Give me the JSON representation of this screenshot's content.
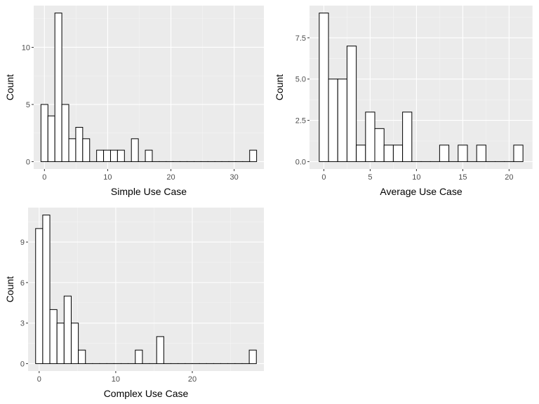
{
  "chart_data": [
    {
      "type": "bar",
      "subtype": "histogram",
      "xlabel": "Simple Use Case",
      "ylabel": "Count",
      "bin_width": 1.1,
      "bin_centers": [
        0,
        1.1,
        2.2,
        3.3,
        4.4,
        5.5,
        6.6,
        7.7,
        8.8,
        9.9,
        11.0,
        12.1,
        13.2,
        14.3,
        15.4,
        16.5,
        17.6,
        18.7,
        19.8,
        20.9,
        22.0,
        23.1,
        24.2,
        25.3,
        26.4,
        27.5,
        28.6,
        29.7,
        30.8,
        31.9,
        33.0
      ],
      "counts": [
        5,
        4,
        13,
        5,
        2,
        3,
        2,
        0,
        1,
        1,
        1,
        1,
        0,
        2,
        0,
        1,
        0,
        0,
        0,
        0,
        0,
        0,
        0,
        0,
        0,
        0,
        0,
        0,
        0,
        0,
        1
      ],
      "xlim": [
        -1.7,
        34.7
      ],
      "ylim": [
        -0.65,
        13.65
      ],
      "x_ticks": [
        0,
        10,
        20,
        30
      ],
      "y_ticks": [
        0,
        5,
        10
      ],
      "y_tick_labels": [
        "0",
        "5",
        "10"
      ],
      "grid": true
    },
    {
      "type": "bar",
      "subtype": "histogram",
      "xlabel": "Average Use Case",
      "ylabel": "Count",
      "bin_width": 1.0,
      "bin_centers": [
        0,
        1,
        2,
        3,
        4,
        5,
        6,
        7,
        8,
        9,
        10,
        11,
        12,
        13,
        14,
        15,
        16,
        17,
        18,
        19,
        20,
        21
      ],
      "counts": [
        9,
        5,
        5,
        7,
        1,
        3,
        2,
        1,
        1,
        3,
        0,
        0,
        0,
        1,
        0,
        1,
        0,
        1,
        0,
        0,
        0,
        1
      ],
      "xlim": [
        -1.55,
        22.55
      ],
      "ylim": [
        -0.45,
        9.45
      ],
      "x_ticks": [
        0,
        5,
        10,
        15,
        20
      ],
      "y_ticks": [
        0,
        2.5,
        5,
        7.5
      ],
      "y_tick_labels": [
        "0.0",
        "2.5",
        "5.0",
        "7.5"
      ],
      "grid": true
    },
    {
      "type": "bar",
      "subtype": "histogram",
      "xlabel": "Complex Use Case",
      "ylabel": "Count",
      "bin_width": 0.93,
      "bin_centers": [
        0,
        0.93,
        1.86,
        2.79,
        3.72,
        4.65,
        5.58,
        6.51,
        7.44,
        8.37,
        9.3,
        10.23,
        11.16,
        12.09,
        13.02,
        13.95,
        14.88,
        15.81,
        16.74,
        17.67,
        18.6,
        19.53,
        20.46,
        21.39,
        22.32,
        23.25,
        24.18,
        25.11,
        26.04,
        26.97,
        27.9
      ],
      "counts": [
        10,
        11,
        4,
        3,
        5,
        3,
        1,
        0,
        0,
        0,
        0,
        0,
        0,
        0,
        1,
        0,
        0,
        2,
        0,
        0,
        0,
        0,
        0,
        0,
        0,
        0,
        0,
        0,
        0,
        0,
        1
      ],
      "xlim": [
        -1.45,
        29.35
      ],
      "ylim": [
        -0.55,
        11.55
      ],
      "x_ticks": [
        0,
        10,
        20
      ],
      "y_ticks": [
        0,
        3,
        6,
        9
      ],
      "y_tick_labels": [
        "0",
        "3",
        "6",
        "9"
      ],
      "grid": true
    }
  ]
}
